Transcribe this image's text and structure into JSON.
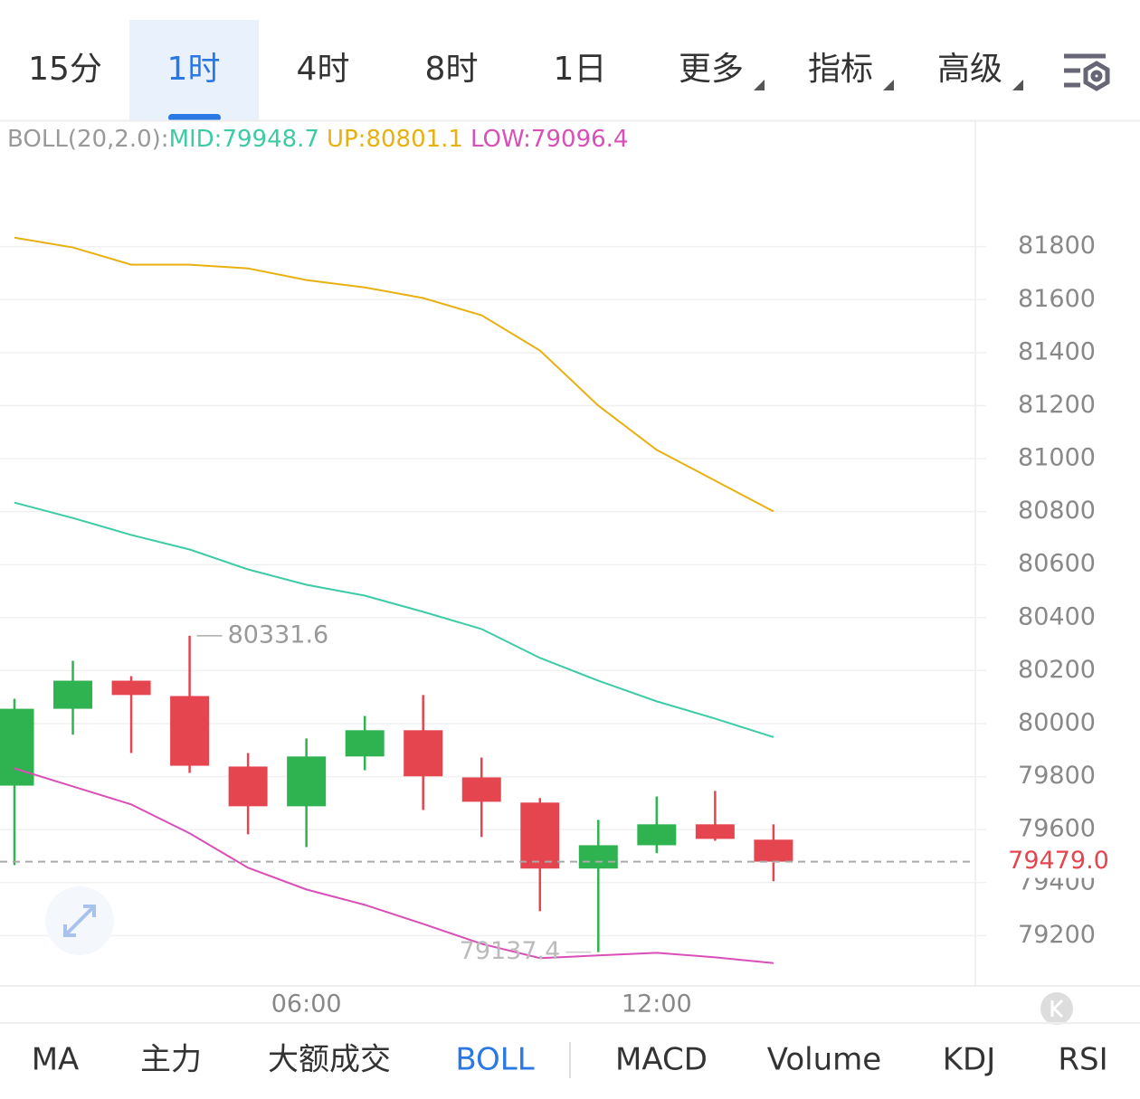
{
  "top_tabs": [
    "15分",
    "1时",
    "4时",
    "8时",
    "1日",
    "更多",
    "指标",
    "高级"
  ],
  "indicator_tabs": [
    "MA",
    "主力",
    "大额成交",
    "BOLL",
    "MACD",
    "Volume",
    "KDJ",
    "RSI"
  ],
  "chart_data": {
    "type": "candlestick",
    "indicator_legend": [
      "BOLL(20,2.0):",
      "MID:79948.7",
      "UP:80801.1",
      "LOW:79096.4"
    ],
    "categories": [
      null,
      null,
      null,
      null,
      null,
      "06:00",
      null,
      null,
      null,
      null,
      null,
      "12:00",
      null,
      null
    ],
    "open": [
      79766,
      80056,
      80162,
      80104,
      79838,
      79688,
      79876,
      79975,
      79797,
      79702,
      79453,
      79541,
      79620,
      79562
    ],
    "high": [
      80094,
      80237,
      80179,
      80331.6,
      79889,
      79944,
      80029,
      80108,
      79872,
      79719,
      79637,
      79725,
      79746,
      79620
    ],
    "low": [
      79466,
      79958,
      79889,
      79814,
      79582,
      79534,
      79824,
      79674,
      79572,
      79292,
      79137.4,
      79511,
      79558,
      79405
    ],
    "close": [
      80056,
      80162,
      80108,
      79841,
      79688,
      79876,
      79975,
      79801,
      79705,
      79453,
      79541,
      79620,
      79565,
      79479
    ],
    "up_color": "#2fb350",
    "down_color": "#e5454f",
    "bands": [
      {
        "color": "#3ccba5",
        "values": [
          80834,
          80776,
          80712,
          80657,
          80582,
          80524,
          80483,
          80422,
          80357,
          80248,
          80162,
          80084,
          80019,
          79949
        ]
      },
      {
        "color": "#e8b010",
        "values": [
          81834,
          81797,
          81732,
          81732,
          81718,
          81674,
          81646,
          81606,
          81541,
          81408,
          81200,
          81033,
          80917,
          80801
        ]
      },
      {
        "color": "#d94fb7",
        "values": [
          79831,
          79763,
          79695,
          79586,
          79456,
          79374,
          79316,
          79244,
          79169,
          79115,
          79125,
          79135,
          79118,
          79096
        ]
      }
    ],
    "last_price": {
      "value": 79479,
      "label": "79479.0"
    },
    "ylim": [
      79010,
      82270
    ],
    "yticks": [
      79200,
      79400,
      79600,
      79800,
      80000,
      80200,
      80400,
      80600,
      80800,
      81000,
      81200,
      81400,
      81600,
      81800
    ],
    "grid": true
  }
}
